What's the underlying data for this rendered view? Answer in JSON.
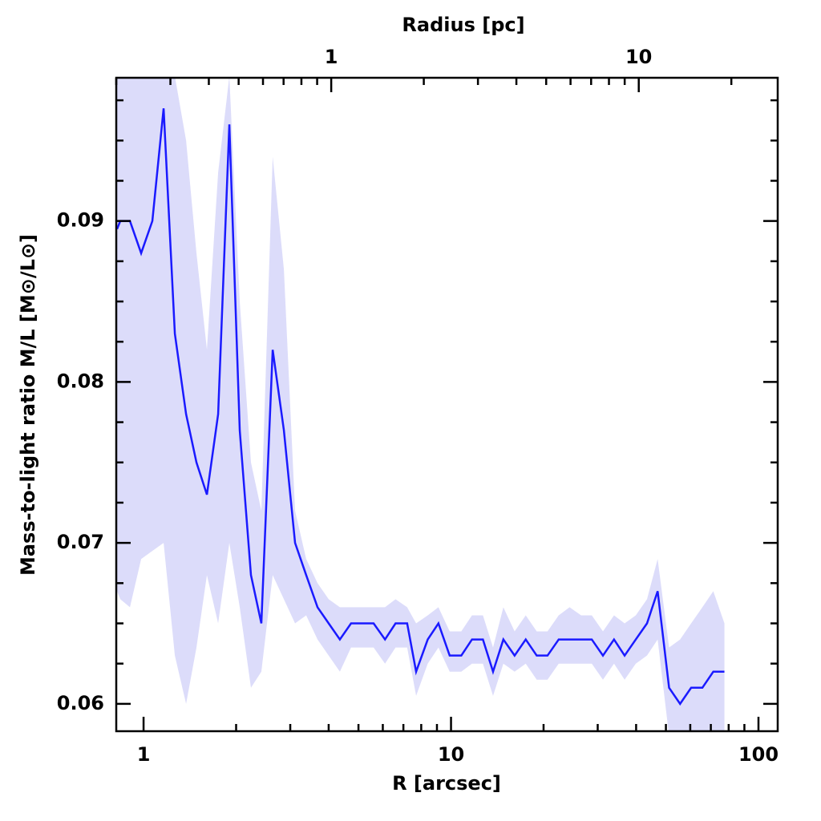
{
  "chart_data": {
    "type": "line",
    "title": "Radius [pc]",
    "x_label": "R [arcsec]",
    "y_label": "Mass-to-light ratio M/L [M⊙/L⊙]",
    "xscale": "log",
    "xlim": [
      0.815,
      115.5
    ],
    "xticks": [
      1,
      10,
      100
    ],
    "xminor": [
      2,
      3,
      4,
      5,
      6,
      7,
      8,
      9,
      20,
      30,
      40,
      50,
      60,
      70,
      80,
      90
    ],
    "x2lim": [
      0.2,
      28.3
    ],
    "x2ticks": [
      1,
      10
    ],
    "x2minor": [
      0.2,
      0.3,
      0.4,
      0.5,
      0.6,
      0.7,
      0.8,
      0.9,
      2,
      3,
      4,
      5,
      6,
      7,
      8,
      9,
      20
    ],
    "ylim": [
      0.0583,
      0.0989
    ],
    "yticks": [
      0.06,
      0.07,
      0.08,
      0.09
    ],
    "yminor": [
      0.0625,
      0.065,
      0.0675,
      0.0725,
      0.075,
      0.0775,
      0.0825,
      0.085,
      0.0875,
      0.0925,
      0.095,
      0.0975
    ],
    "color": "#1a1aff",
    "band_color": "#dcdcfa",
    "x": [
      0.82,
      0.84,
      0.903,
      0.982,
      1.068,
      1.162,
      1.264,
      1.375,
      1.486,
      1.607,
      1.748,
      1.901,
      2.055,
      2.235,
      2.416,
      2.63,
      2.86,
      3.11,
      3.38,
      3.68,
      4.0,
      4.35,
      4.73,
      5.15,
      5.6,
      6.1,
      6.6,
      7.2,
      7.7,
      8.4,
      9.1,
      9.9,
      10.8,
      11.7,
      12.7,
      13.7,
      14.8,
      16.1,
      17.5,
      19.0,
      20.6,
      22.4,
      24.3,
      26.5,
      28.7,
      31.2,
      33.9,
      36.7,
      39.9,
      43.4,
      47.0,
      51.2,
      55.6,
      60.4,
      65.7,
      71.3,
      77.5
    ],
    "values": [
      0.0895,
      0.09,
      0.09,
      0.088,
      0.09,
      0.097,
      0.083,
      0.078,
      0.075,
      0.073,
      0.078,
      0.096,
      0.077,
      0.068,
      0.065,
      0.082,
      0.077,
      0.07,
      0.068,
      0.066,
      0.065,
      0.064,
      0.065,
      0.065,
      0.065,
      0.064,
      0.065,
      0.065,
      0.062,
      0.064,
      0.065,
      0.063,
      0.063,
      0.064,
      0.064,
      0.062,
      0.064,
      0.063,
      0.064,
      0.063,
      0.063,
      0.064,
      0.064,
      0.064,
      0.064,
      0.063,
      0.064,
      0.063,
      0.064,
      0.065,
      0.067,
      0.061,
      0.06,
      0.061,
      0.061,
      0.062,
      0.062
    ],
    "lower": [
      0.067,
      0.0665,
      0.066,
      0.069,
      0.0695,
      0.07,
      0.063,
      0.06,
      0.0635,
      0.068,
      0.065,
      0.07,
      0.066,
      0.061,
      0.062,
      0.068,
      0.0665,
      0.065,
      0.0655,
      0.064,
      0.063,
      0.062,
      0.0635,
      0.0635,
      0.0635,
      0.0625,
      0.0635,
      0.0635,
      0.0605,
      0.0625,
      0.0635,
      0.062,
      0.062,
      0.0625,
      0.0625,
      0.0605,
      0.0625,
      0.062,
      0.0625,
      0.0615,
      0.0615,
      0.0625,
      0.0625,
      0.0625,
      0.0625,
      0.0615,
      0.0625,
      0.0615,
      0.0625,
      0.063,
      0.064,
      0.058,
      0.058,
      0.058,
      0.058,
      0.058,
      0.058
    ],
    "upper": [
      0.099,
      0.099,
      0.099,
      0.099,
      0.099,
      0.099,
      0.099,
      0.095,
      0.088,
      0.082,
      0.093,
      0.099,
      0.085,
      0.075,
      0.072,
      0.094,
      0.087,
      0.072,
      0.069,
      0.0675,
      0.0665,
      0.066,
      0.066,
      0.066,
      0.066,
      0.066,
      0.0665,
      0.066,
      0.065,
      0.0655,
      0.066,
      0.0645,
      0.0645,
      0.0655,
      0.0655,
      0.0635,
      0.066,
      0.0645,
      0.0655,
      0.0645,
      0.0645,
      0.0655,
      0.066,
      0.0655,
      0.0655,
      0.0645,
      0.0655,
      0.065,
      0.0655,
      0.0665,
      0.069,
      0.0635,
      0.064,
      0.065,
      0.066,
      0.067,
      0.065
    ]
  }
}
